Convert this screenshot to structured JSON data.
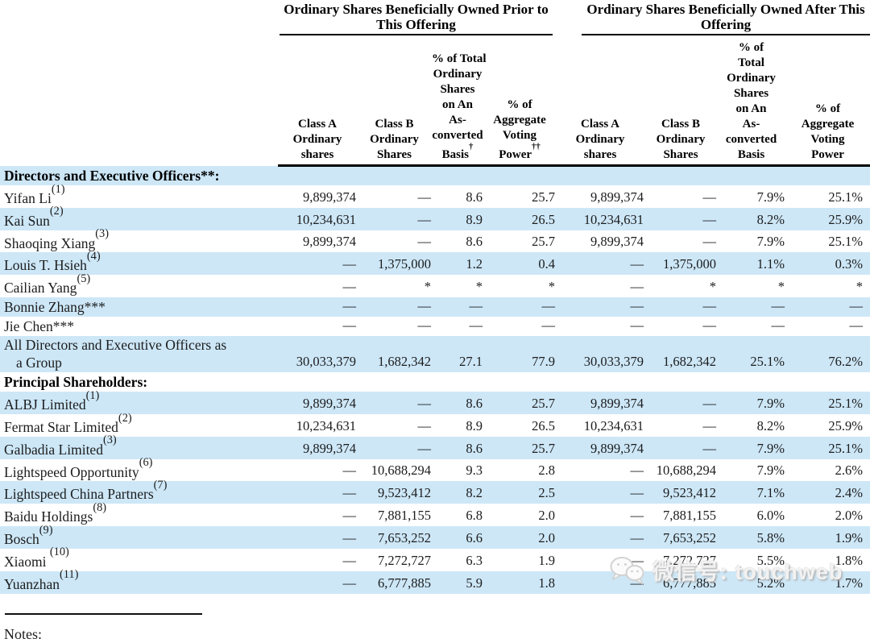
{
  "table": {
    "stripe_color": "#cde7f7",
    "group_headers": [
      {
        "label": "Ordinary Shares Beneficially Owned Prior to This Offering"
      },
      {
        "label": "Ordinary Shares Beneficially Owned After This Offering"
      }
    ],
    "sub_headers": [
      {
        "lines": [
          "Class A",
          "Ordinary",
          "shares"
        ],
        "sup": ""
      },
      {
        "lines": [
          "Class B",
          "Ordinary",
          "Shares"
        ],
        "sup": ""
      },
      {
        "lines": [
          "% of Total",
          "Ordinary",
          "Shares",
          "on An",
          "As-",
          "converted",
          "Basis"
        ],
        "sup": "†"
      },
      {
        "lines": [
          "% of",
          "Aggregate",
          "Voting",
          "Power"
        ],
        "sup": "††"
      },
      {
        "lines": [
          "Class A",
          "Ordinary",
          "shares"
        ],
        "sup": ""
      },
      {
        "lines": [
          "Class B",
          "Ordinary",
          "Shares"
        ],
        "sup": ""
      },
      {
        "lines": [
          "% of",
          "Total",
          "Ordinary",
          "Shares",
          "on An",
          "As-",
          "converted",
          "Basis"
        ],
        "sup": ""
      },
      {
        "lines": [
          "% of",
          "Aggregate",
          "Voting",
          "Power"
        ],
        "sup": ""
      }
    ],
    "rows": [
      {
        "type": "section",
        "name_lines": [
          "Directors and Executive Officers**:"
        ],
        "sup": "",
        "shaded": true,
        "values": []
      },
      {
        "type": "data",
        "name_lines": [
          "Yifan Li"
        ],
        "sup": "(1)",
        "shaded": false,
        "values": [
          "9,899,374",
          "—",
          "8.6",
          "25.7",
          "9,899,374",
          "—",
          "7.9%",
          "25.1%"
        ]
      },
      {
        "type": "data",
        "name_lines": [
          "Kai Sun"
        ],
        "sup": "(2)",
        "shaded": true,
        "values": [
          "10,234,631",
          "—",
          "8.9",
          "26.5",
          "10,234,631",
          "—",
          "8.2%",
          "25.9%"
        ]
      },
      {
        "type": "data",
        "name_lines": [
          "Shaoqing Xiang"
        ],
        "sup": "(3)",
        "shaded": false,
        "values": [
          "9,899,374",
          "—",
          "8.6",
          "25.7",
          "9,899,374",
          "—",
          "7.9%",
          "25.1%"
        ]
      },
      {
        "type": "data",
        "name_lines": [
          "Louis T. Hsieh"
        ],
        "sup": "(4)",
        "shaded": true,
        "values": [
          "—",
          "1,375,000",
          "1.2",
          "0.4",
          "—",
          "1,375,000",
          "1.1%",
          "0.3%"
        ]
      },
      {
        "type": "data",
        "name_lines": [
          "Cailian Yang"
        ],
        "sup": "(5)",
        "shaded": false,
        "values": [
          "—",
          "*",
          "*",
          "*",
          "—",
          "*",
          "*",
          "*"
        ]
      },
      {
        "type": "data",
        "name_lines": [
          "Bonnie Zhang***"
        ],
        "sup": "",
        "shaded": true,
        "values": [
          "—",
          "—",
          "—",
          "—",
          "—",
          "—",
          "—",
          "—"
        ]
      },
      {
        "type": "data",
        "name_lines": [
          "Jie Chen***"
        ],
        "sup": "",
        "shaded": false,
        "values": [
          "—",
          "—",
          "—",
          "—",
          "—",
          "—",
          "—",
          "—"
        ]
      },
      {
        "type": "data",
        "name_lines": [
          "All Directors and Executive Officers as",
          "a Group"
        ],
        "sup": "",
        "shaded": true,
        "values": [
          "30,033,379",
          "1,682,342",
          "27.1",
          "77.9",
          "30,033,379",
          "1,682,342",
          "25.1%",
          "76.2%"
        ]
      },
      {
        "type": "section",
        "name_lines": [
          "Principal Shareholders:"
        ],
        "sup": "",
        "shaded": false,
        "values": []
      },
      {
        "type": "data",
        "name_lines": [
          "ALBJ Limited"
        ],
        "sup": "(1)",
        "shaded": true,
        "values": [
          "9,899,374",
          "—",
          "8.6",
          "25.7",
          "9,899,374",
          "—",
          "7.9%",
          "25.1%"
        ]
      },
      {
        "type": "data",
        "name_lines": [
          "Fermat Star Limited"
        ],
        "sup": "(2)",
        "shaded": false,
        "values": [
          "10,234,631",
          "—",
          "8.9",
          "26.5",
          "10,234,631",
          "—",
          "8.2%",
          "25.9%"
        ]
      },
      {
        "type": "data",
        "name_lines": [
          "Galbadia Limited"
        ],
        "sup": "(3)",
        "shaded": true,
        "values": [
          "9,899,374",
          "—",
          "8.6",
          "25.7",
          "9,899,374",
          "—",
          "7.9%",
          "25.1%"
        ]
      },
      {
        "type": "data",
        "name_lines": [
          "Lightspeed Opportunity"
        ],
        "sup": "(6)",
        "shaded": false,
        "values": [
          "—",
          "10,688,294",
          "9.3",
          "2.8",
          "—",
          "10,688,294",
          "7.9%",
          "2.6%"
        ]
      },
      {
        "type": "data",
        "name_lines": [
          "Lightspeed China Partners"
        ],
        "sup": "(7)",
        "shaded": true,
        "values": [
          "—",
          "9,523,412",
          "8.2",
          "2.5",
          "—",
          "9,523,412",
          "7.1%",
          "2.4%"
        ]
      },
      {
        "type": "data",
        "name_lines": [
          "Baidu Holdings"
        ],
        "sup": "(8)",
        "shaded": false,
        "values": [
          "—",
          "7,881,155",
          "6.8",
          "2.0",
          "—",
          "7,881,155",
          "6.0%",
          "2.0%"
        ]
      },
      {
        "type": "data",
        "name_lines": [
          "Bosch"
        ],
        "sup": "(9)",
        "shaded": true,
        "values": [
          "—",
          "7,653,252",
          "6.6",
          "2.0",
          "—",
          "7,653,252",
          "5.8%",
          "1.9%"
        ]
      },
      {
        "type": "data",
        "name_lines": [
          "Xiaomi "
        ],
        "sup": "(10)",
        "shaded": false,
        "values": [
          "—",
          "7,272,727",
          "6.3",
          "1.9",
          "—",
          "7,272,727",
          "5.5%",
          "1.8%"
        ]
      },
      {
        "type": "data",
        "name_lines": [
          "Yuanzhan"
        ],
        "sup": "(11)",
        "shaded": true,
        "values": [
          "—",
          "6,777,885",
          "5.9",
          "1.8",
          "—",
          "6,777,885",
          "5.2%",
          "1.7%"
        ]
      }
    ]
  },
  "footer": {
    "notes_label": "Notes:"
  },
  "watermark": {
    "icon": "wechat-icon",
    "text": "微信号: touchweb"
  }
}
